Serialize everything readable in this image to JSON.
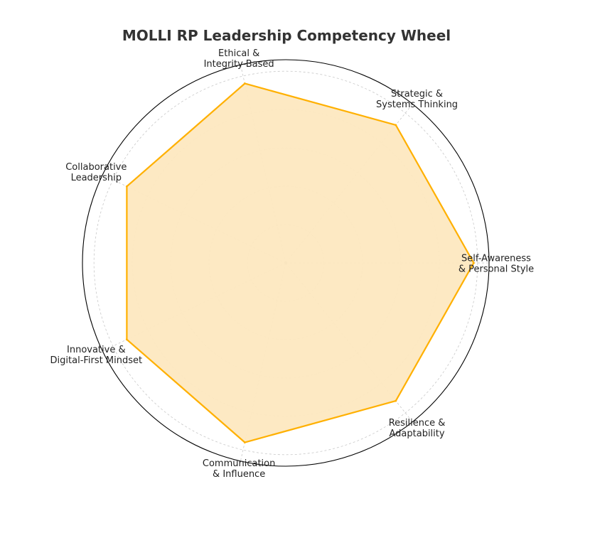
{
  "chart_data": {
    "type": "radar",
    "title": "MOLLI RP Leadership Competency Wheel",
    "categories": [
      [
        "Self-Awareness",
        "& Personal Style"
      ],
      [
        "Strategic &",
        "Systems Thinking"
      ],
      [
        "Ethical &",
        "Integrity-Based"
      ],
      [
        "Collaborative",
        "Leadership"
      ],
      [
        "Innovative &",
        "Digital-First Mindset"
      ],
      [
        "Communication",
        "& Influence"
      ],
      [
        "Resilience &",
        "Adaptability"
      ]
    ],
    "series": [
      {
        "values": [
          4.9,
          4.6,
          4.8,
          4.6,
          4.6,
          4.8,
          4.6
        ]
      }
    ],
    "rlim": [
      0,
      5.3
    ],
    "grid_levels": [
      1,
      2,
      3,
      4,
      5
    ],
    "grid": true,
    "legend": "none",
    "colors": {
      "line": "#ffb000",
      "fill": "#fde8c0",
      "grid": "#c8c8c8",
      "outer": "#000000",
      "title": "#333333",
      "text": "#222222"
    }
  }
}
